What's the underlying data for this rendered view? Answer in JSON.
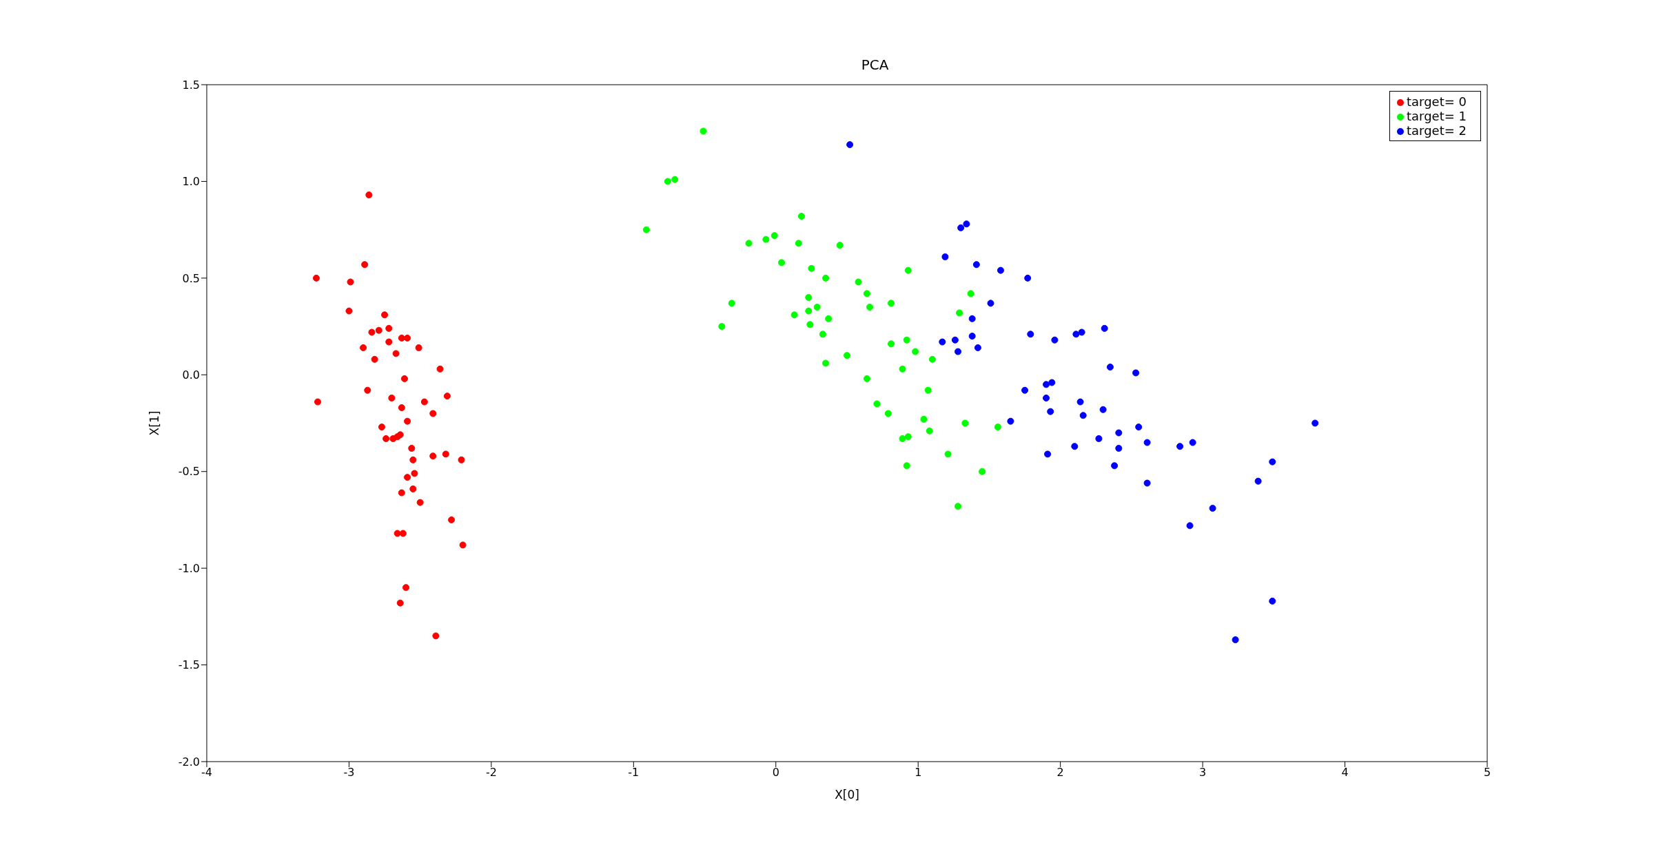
{
  "chart_data": {
    "type": "scatter",
    "title": "PCA",
    "xlabel": "X[0]",
    "ylabel": "X[1]",
    "xlim": [
      -4,
      5
    ],
    "xticks": [
      -4,
      -3,
      -2,
      -1,
      0,
      1,
      2,
      3,
      4,
      5
    ],
    "ylim": [
      -2,
      1.5
    ],
    "yticks": [
      {
        "value": -2,
        "label": "-2.0"
      },
      {
        "value": -1.5,
        "label": "-1.5"
      },
      {
        "value": -1,
        "label": "-1.0"
      },
      {
        "value": -0.5,
        "label": "-0.5"
      },
      {
        "value": 0,
        "label": "0.0"
      },
      {
        "value": 0.5,
        "label": "0.5"
      },
      {
        "value": 1,
        "label": "1.0"
      },
      {
        "value": 1.5,
        "label": "1.5"
      }
    ],
    "grid": false,
    "legend": "top right",
    "marker": "circle",
    "series": [
      {
        "name": "target= 0",
        "color": "#ff0000",
        "x": [
          -3.23,
          -3.22,
          -2.86,
          -2.89,
          -2.99,
          -3.0,
          -2.75,
          -2.72,
          -2.84,
          -2.79,
          -2.59,
          -2.63,
          -2.72,
          -2.9,
          -2.51,
          -2.67,
          -2.82,
          -2.36,
          -2.61,
          -2.87,
          -2.31,
          -2.7,
          -2.47,
          -2.63,
          -2.41,
          -2.59,
          -2.77,
          -2.74,
          -2.69,
          -2.66,
          -2.64,
          -2.56,
          -2.32,
          -2.41,
          -2.21,
          -2.55,
          -2.54,
          -2.59,
          -2.55,
          -2.63,
          -2.5,
          -2.28,
          -2.66,
          -2.62,
          -2.2,
          -2.6,
          -2.64,
          -2.39
        ],
        "values": [
          0.5,
          -0.14,
          0.93,
          0.57,
          0.48,
          0.33,
          0.31,
          0.24,
          0.22,
          0.23,
          0.19,
          0.19,
          0.17,
          0.14,
          0.14,
          0.11,
          0.08,
          0.03,
          -0.02,
          -0.08,
          -0.11,
          -0.12,
          -0.14,
          -0.17,
          -0.2,
          -0.24,
          -0.27,
          -0.33,
          -0.33,
          -0.32,
          -0.31,
          -0.38,
          -0.41,
          -0.42,
          -0.44,
          -0.44,
          -0.51,
          -0.53,
          -0.59,
          -0.61,
          -0.66,
          -0.75,
          -0.82,
          -0.82,
          -0.88,
          -1.1,
          -1.18,
          -1.35
        ]
      },
      {
        "name": "target= 1",
        "color": "#00ff00",
        "x": [
          -0.51,
          -0.76,
          -0.71,
          -0.91,
          0.18,
          -0.01,
          -0.07,
          -0.19,
          0.16,
          0.45,
          0.04,
          0.93,
          0.25,
          0.35,
          0.58,
          0.64,
          1.37,
          0.23,
          -0.31,
          0.81,
          0.66,
          0.29,
          0.23,
          1.29,
          0.13,
          0.37,
          0.24,
          -0.38,
          0.33,
          0.92,
          0.81,
          0.98,
          0.5,
          1.1,
          0.35,
          0.89,
          0.64,
          1.07,
          0.71,
          0.79,
          1.04,
          1.33,
          1.56,
          1.08,
          0.93,
          0.89,
          1.21,
          0.92,
          1.45,
          1.28
        ],
        "values": [
          1.26,
          1.0,
          1.01,
          0.75,
          0.82,
          0.72,
          0.7,
          0.68,
          0.68,
          0.67,
          0.58,
          0.54,
          0.55,
          0.5,
          0.48,
          0.42,
          0.42,
          0.4,
          0.37,
          0.37,
          0.35,
          0.35,
          0.33,
          0.32,
          0.31,
          0.29,
          0.26,
          0.25,
          0.21,
          0.18,
          0.16,
          0.12,
          0.1,
          0.08,
          0.06,
          0.03,
          -0.02,
          -0.08,
          -0.15,
          -0.2,
          -0.23,
          -0.25,
          -0.27,
          -0.29,
          -0.32,
          -0.33,
          -0.41,
          -0.47,
          -0.5,
          -0.68
        ]
      },
      {
        "name": "target= 2",
        "color": "#0000ff",
        "x": [
          0.52,
          1.3,
          1.34,
          1.19,
          1.41,
          1.58,
          1.77,
          1.51,
          1.38,
          1.79,
          2.11,
          2.15,
          2.31,
          1.38,
          1.96,
          1.26,
          1.17,
          1.42,
          1.28,
          2.35,
          2.53,
          1.94,
          1.9,
          1.75,
          1.9,
          2.14,
          2.3,
          1.93,
          2.16,
          1.65,
          3.79,
          2.55,
          2.41,
          2.27,
          2.61,
          2.93,
          2.84,
          2.1,
          2.41,
          1.91,
          3.49,
          2.38,
          3.39,
          2.61,
          3.07,
          2.91,
          3.49,
          3.23
        ],
        "values": [
          1.19,
          0.76,
          0.78,
          0.61,
          0.57,
          0.54,
          0.5,
          0.37,
          0.29,
          0.21,
          0.21,
          0.22,
          0.24,
          0.2,
          0.18,
          0.18,
          0.17,
          0.14,
          0.12,
          0.04,
          0.01,
          -0.04,
          -0.05,
          -0.08,
          -0.12,
          -0.14,
          -0.18,
          -0.19,
          -0.21,
          -0.24,
          -0.25,
          -0.27,
          -0.3,
          -0.33,
          -0.35,
          -0.35,
          -0.37,
          -0.37,
          -0.38,
          -0.41,
          -0.45,
          -0.47,
          -0.55,
          -0.56,
          -0.69,
          -0.78,
          -1.17,
          -1.37
        ]
      }
    ]
  }
}
